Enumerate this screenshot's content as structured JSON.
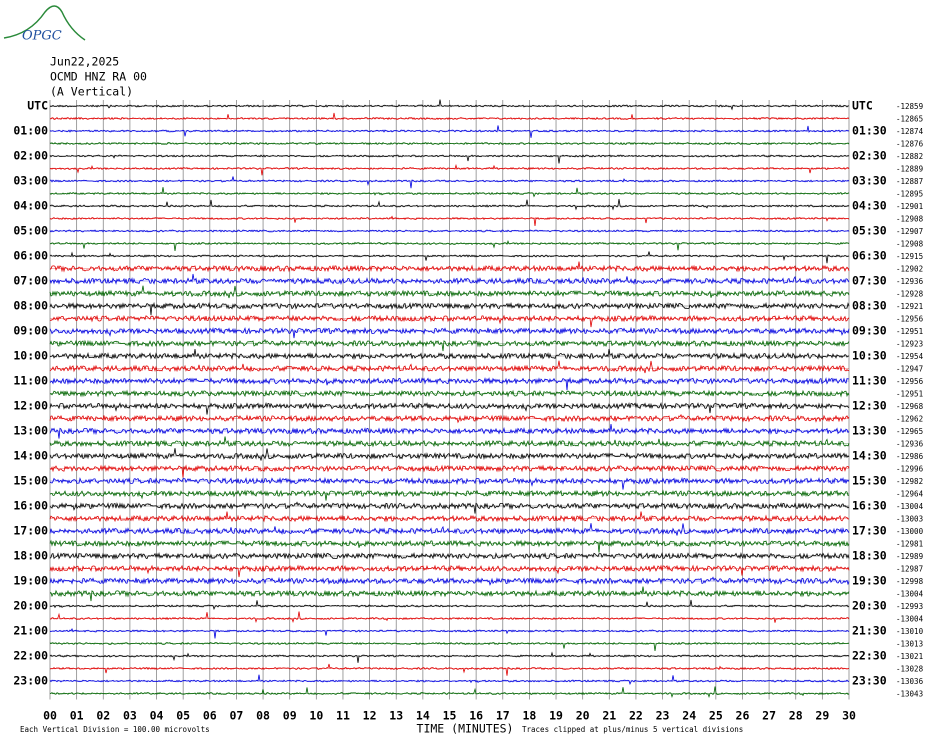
{
  "header": {
    "logo": "OPGC",
    "date": "Jun22,2025",
    "station": "OCMD HNZ RA 00",
    "component": "(A Vertical)"
  },
  "left_labels": [
    "UTC",
    "01:00",
    "02:00",
    "03:00",
    "04:00",
    "05:00",
    "06:00",
    "07:00",
    "08:00",
    "09:00",
    "10:00",
    "11:00",
    "12:00",
    "13:00",
    "14:00",
    "15:00",
    "16:00",
    "17:00",
    "18:00",
    "19:00",
    "20:00",
    "21:00",
    "22:00",
    "23:00"
  ],
  "right_labels": [
    "UTC",
    "01:30",
    "02:30",
    "03:30",
    "04:30",
    "05:30",
    "06:30",
    "07:30",
    "08:30",
    "09:30",
    "10:30",
    "11:30",
    "12:30",
    "13:30",
    "14:30",
    "15:30",
    "16:30",
    "17:30",
    "18:30",
    "19:30",
    "20:30",
    "21:30",
    "22:30",
    "23:30"
  ],
  "trace_offsets": [
    -12859,
    -12865,
    -12874,
    -12876,
    -12882,
    -12889,
    -12887,
    -12895,
    -12901,
    -12908,
    -12907,
    -12908,
    -12915,
    -12902,
    -12936,
    -12928,
    -12921,
    -12956,
    -12951,
    -12923,
    -12954,
    -12947,
    -12956,
    -12951,
    -12968,
    -12962,
    -12965,
    -12936,
    -12986,
    -12996,
    -12982,
    -12964,
    -13004,
    -13003,
    -13000,
    -12981,
    -12989,
    -12987,
    -12998,
    -13004,
    -12993,
    -13004,
    -13010,
    -13013,
    -13021,
    -13028,
    -13036,
    -13043
  ],
  "trace_colors": [
    "#000000",
    "#e00000",
    "#0000e0",
    "#006400"
  ],
  "x_ticks": [
    "00",
    "01",
    "02",
    "03",
    "04",
    "05",
    "06",
    "07",
    "08",
    "09",
    "10",
    "11",
    "12",
    "13",
    "14",
    "15",
    "16",
    "17",
    "18",
    "19",
    "20",
    "21",
    "22",
    "23",
    "24",
    "25",
    "26",
    "27",
    "28",
    "29",
    "30"
  ],
  "x_label": "TIME (MINUTES)",
  "footnotes": {
    "division": "Each Vertical Division = 100.00 microvolts",
    "clipping": "Traces clipped at plus/minus 5 vertical divisions"
  }
}
